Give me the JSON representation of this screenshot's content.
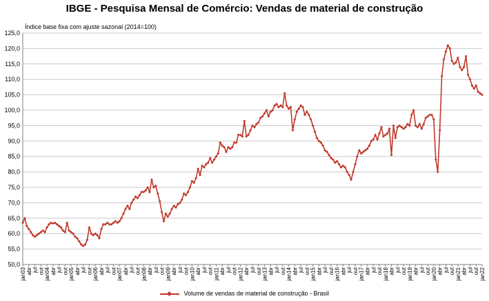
{
  "chart_data": {
    "type": "line",
    "title": "IBGE - Pesquisa Mensal de Comércio: Vendas de material de construção",
    "subtitle": "Índice base fixa com ajuste sazonal (2014=100)",
    "xlabel": "",
    "ylabel": "",
    "ylim": [
      50,
      125
    ],
    "yticks": [
      "50,0",
      "55,0",
      "60,0",
      "65,0",
      "70,0",
      "75,0",
      "80,0",
      "85,0",
      "90,0",
      "95,0",
      "100,0",
      "105,0",
      "110,0",
      "115,0",
      "120,0",
      "125,0"
    ],
    "x_start": "2003-01",
    "x_tick_labels": [
      "jan03",
      "abr",
      "jul",
      "out",
      "jan04",
      "abr",
      "jul",
      "out",
      "jan05",
      "abr",
      "jul",
      "out",
      "jan06",
      "abr",
      "jul",
      "out",
      "jan07",
      "abr",
      "jul",
      "out",
      "jan08",
      "abr",
      "jul",
      "out",
      "jan09",
      "abr",
      "jul",
      "out",
      "jan10",
      "abr",
      "jul",
      "out",
      "jan11",
      "abr",
      "jul",
      "out",
      "jan12",
      "abr",
      "jul",
      "out",
      "jan13",
      "abr",
      "jul",
      "out",
      "jan14",
      "abr",
      "jul",
      "out",
      "jan15",
      "abr",
      "jul",
      "out",
      "jan16",
      "abr",
      "jul",
      "out",
      "jan17",
      "abr",
      "jul",
      "out",
      "jan18",
      "abr",
      "jul",
      "out",
      "jan19",
      "abr",
      "jul",
      "out",
      "jan20",
      "abr",
      "jul",
      "out",
      "jan21",
      "abr",
      "jul",
      "out",
      "jan22"
    ],
    "grid": true,
    "legend_position": "bottom",
    "series": [
      {
        "name": "Volume de vendas de material de construção - Brasil",
        "color": "#C0392B",
        "values": [
          63.5,
          65,
          62.5,
          61.5,
          60.5,
          59.5,
          59.0,
          59.5,
          60.0,
          60.5,
          61.0,
          60.5,
          62.0,
          63.0,
          63.5,
          63.3,
          63.5,
          63.0,
          62.5,
          62.0,
          61.0,
          60.5,
          63.5,
          61.0,
          60.5,
          60.0,
          59.0,
          58.5,
          57.5,
          56.5,
          56.0,
          56.5,
          58.0,
          62.0,
          60.0,
          59.5,
          60.0,
          59.5,
          58.5,
          61.5,
          63.0,
          63.0,
          63.5,
          63.0,
          63.0,
          63.5,
          64.0,
          63.5,
          64.0,
          65.0,
          66.5,
          68.0,
          69.0,
          68.0,
          70.0,
          71.0,
          72.0,
          71.5,
          72.5,
          73.5,
          73.5,
          74.0,
          75.0,
          73.5,
          77.5,
          75.0,
          75.5,
          73.0,
          70.5,
          67.0,
          64.0,
          66.5,
          65.5,
          66.5,
          68.0,
          69.0,
          68.5,
          69.5,
          70.0,
          71.0,
          73.0,
          72.5,
          73.5,
          75.0,
          77.0,
          76.5,
          78.0,
          81.0,
          79.0,
          82.0,
          81.5,
          82.5,
          83.0,
          84.5,
          83.0,
          84.0,
          85.0,
          86.0,
          89.5,
          88.5,
          88.0,
          86.5,
          88.0,
          87.5,
          88.0,
          89.5,
          89.5,
          92.0,
          92.0,
          91.5,
          96.5,
          91.5,
          92.0,
          93.5,
          95.0,
          94.5,
          95.5,
          96.0,
          97.5,
          98.0,
          99.0,
          100.0,
          98.0,
          99.5,
          100.0,
          101.5,
          102.0,
          101.0,
          101.5,
          101.0,
          105.5,
          101.5,
          100.5,
          101.0,
          93.5,
          97.0,
          99.5,
          100.5,
          101.5,
          101.0,
          98.5,
          99.5,
          98.5,
          97.0,
          95.0,
          93.0,
          91.0,
          90.0,
          89.5,
          88.5,
          87.0,
          86.5,
          85.5,
          84.5,
          84.0,
          83.0,
          83.5,
          82.5,
          81.5,
          82.0,
          81.5,
          80.0,
          79.0,
          77.5,
          80.0,
          82.5,
          85.0,
          87.0,
          86.0,
          86.5,
          87.0,
          87.5,
          88.5,
          90.0,
          90.5,
          92.0,
          90.5,
          92.5,
          94.5,
          91.5,
          92.0,
          92.5,
          94.0,
          85.5,
          95.0,
          91.0,
          94.5,
          95.0,
          94.5,
          94.0,
          94.5,
          95.5,
          95.0,
          98.5,
          100.0,
          95.0,
          94.5,
          95.5,
          94.0,
          95.5,
          97.5,
          98.0,
          98.5,
          98.5,
          97.0,
          84.0,
          80.0,
          93.5,
          111.0,
          116.5,
          119.0,
          121.0,
          120.0,
          116.0,
          115.0,
          115.5,
          117.0,
          114.0,
          113.0,
          114.0,
          117.5,
          111.5,
          110.0,
          108.0,
          107.0,
          108.0,
          106.0,
          105.5,
          105.0
        ]
      }
    ]
  }
}
